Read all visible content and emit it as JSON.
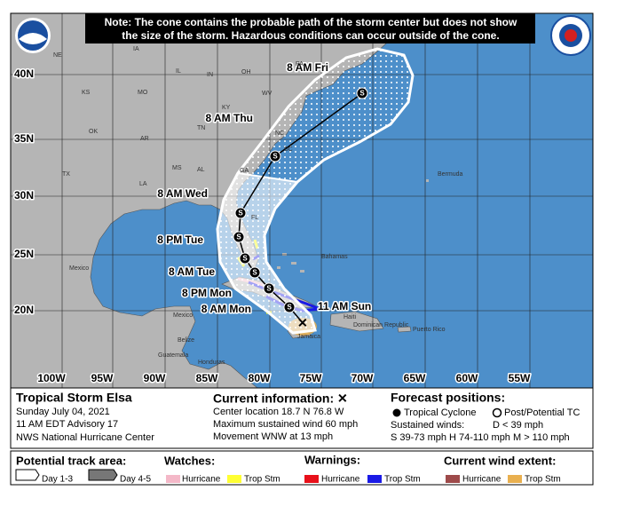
{
  "note_lines": [
    "Note: The cone contains the probable path of the storm center but does not show",
    "the size of the storm. Hazardous conditions can occur outside of the cone."
  ],
  "map": {
    "lat_labels": [
      "40N",
      "35N",
      "30N",
      "25N",
      "20N"
    ],
    "lon_labels": [
      "100W",
      "95W",
      "90W",
      "85W",
      "80W",
      "75W",
      "70W",
      "65W",
      "60W",
      "55W"
    ],
    "places": [
      "NE",
      "IA",
      "KS",
      "MO",
      "IL",
      "IN",
      "OH",
      "PA",
      "KY",
      "WV",
      "OK",
      "AR",
      "TN",
      "NC",
      "MS",
      "AL",
      "GA",
      "SC",
      "TX",
      "LA",
      "FL",
      "Mexico",
      "Bermuda",
      "Bahamas",
      "Belize",
      "Guatemala",
      "Honduras",
      "Jamaica",
      "Haiti",
      "Dominican Republic",
      "Puerto Rico",
      "Mexico"
    ],
    "track_labels": [
      "8 AM Fri",
      "8 AM Thu",
      "8 AM Wed",
      "8 PM Tue",
      "8 AM Tue",
      "8 PM Mon",
      "8 AM Mon",
      "11 AM Sun"
    ],
    "track_marker": "S"
  },
  "info": {
    "storm": "Tropical Storm Elsa",
    "date": "Sunday July 04, 2021",
    "advisory": "11 AM EDT Advisory 17",
    "center": "NWS National Hurricane Center",
    "current_title": "Current information: ✕",
    "current_lines": [
      "Center location 18.7 N 76.8 W",
      "Maximum sustained wind 60 mph",
      "Movement WNW at 13 mph"
    ],
    "forecast_title": "Forecast positions:",
    "tropical_cyclone": "Tropical Cyclone",
    "post_tc": "Post/Potential TC",
    "sustained": "Sustained winds:",
    "d_winds": "D < 39 mph",
    "shm_winds": "S 39-73 mph  H 74-110 mph  M > 110 mph"
  },
  "legend": {
    "track_title": "Potential track area:",
    "day13": "Day 1-3",
    "day45": "Day 4-5",
    "watches": "Watches:",
    "watch_hurricane": "Hurricane",
    "watch_ts": "Trop Stm",
    "warnings": "Warnings:",
    "warn_hurricane": "Hurricane",
    "warn_ts": "Trop Stm",
    "wind_title": "Current wind extent:",
    "wind_hurricane": "Hurricane",
    "wind_ts": "Trop Stm"
  }
}
